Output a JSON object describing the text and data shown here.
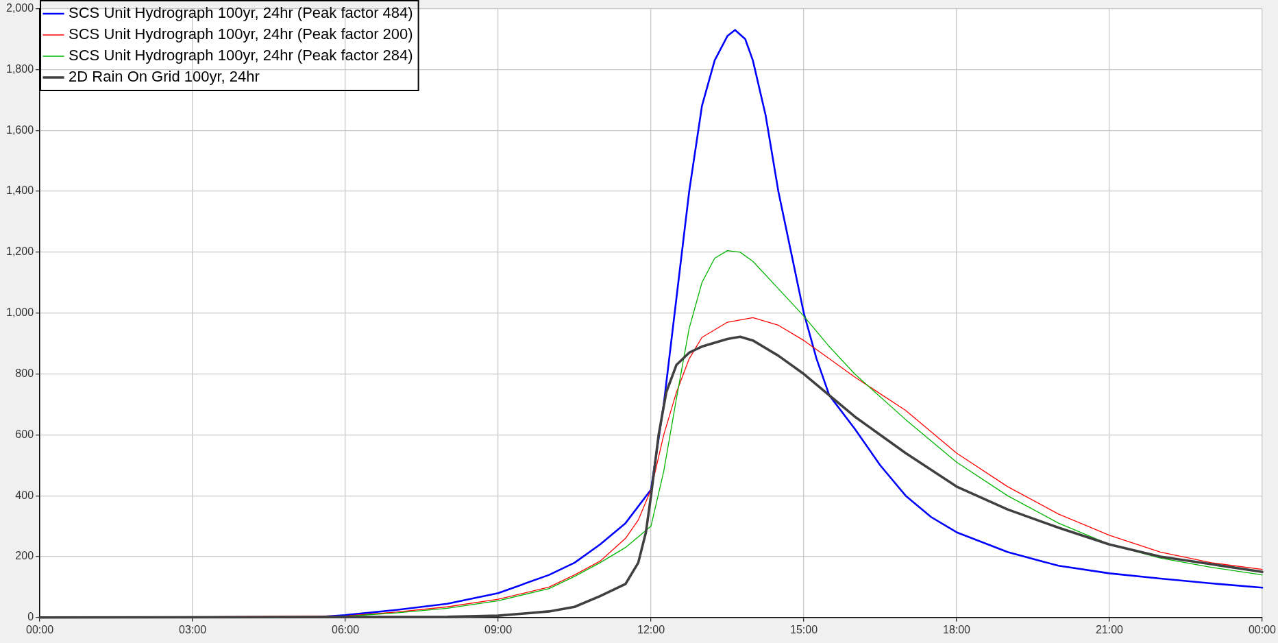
{
  "chart_data": {
    "type": "line",
    "xlim": [
      0,
      24
    ],
    "xticks": [
      {
        "value": 0,
        "label": "00:00"
      },
      {
        "value": 3,
        "label": "03:00"
      },
      {
        "value": 6,
        "label": "06:00"
      },
      {
        "value": 9,
        "label": "09:00"
      },
      {
        "value": 12,
        "label": "12:00"
      },
      {
        "value": 15,
        "label": "15:00"
      },
      {
        "value": 18,
        "label": "18:00"
      },
      {
        "value": 21,
        "label": "21:00"
      },
      {
        "value": 24,
        "label": "00:00"
      }
    ],
    "ylim": [
      0,
      2000
    ],
    "yticks": [
      0,
      200,
      400,
      600,
      800,
      {
        "value": 1000,
        "label": "1,000"
      },
      {
        "value": 1200,
        "label": "1,200"
      },
      {
        "value": 1400,
        "label": "1,400"
      },
      {
        "value": 1600,
        "label": "1,600"
      },
      {
        "value": 1800,
        "label": "1,800"
      },
      {
        "value": 2000,
        "label": "2,000"
      }
    ],
    "grid": true,
    "legend": "top left",
    "series": [
      {
        "name": "SCS Unit Hydrograph 100yr, 24hr (Peak factor 484)",
        "color": "#0000ff",
        "x": [
          0,
          5,
          5.5,
          6,
          7,
          8,
          9,
          10,
          10.5,
          11,
          11.5,
          12,
          12.25,
          12.5,
          12.75,
          13,
          13.25,
          13.5,
          13.65,
          13.85,
          14,
          14.25,
          14.5,
          14.75,
          15,
          15.25,
          15.5,
          16,
          16.5,
          17,
          17.5,
          18,
          19,
          20,
          21,
          22,
          23,
          24
        ],
        "values": [
          0,
          0,
          2,
          8,
          25,
          45,
          80,
          140,
          180,
          240,
          310,
          420,
          700,
          1050,
          1400,
          1680,
          1830,
          1910,
          1930,
          1900,
          1830,
          1650,
          1400,
          1200,
          1000,
          850,
          730,
          620,
          500,
          400,
          330,
          280,
          215,
          170,
          145,
          128,
          112,
          98
        ]
      },
      {
        "name": "SCS Unit Hydrograph 100yr, 24hr (Peak factor 200)",
        "color": "#ff0000",
        "x": [
          0,
          6,
          7,
          8,
          9,
          10,
          10.5,
          11,
          11.5,
          11.75,
          12,
          12.25,
          12.5,
          12.75,
          13,
          13.5,
          14,
          14.5,
          15,
          15.5,
          16,
          17,
          18,
          19,
          20,
          21,
          22,
          23,
          24
        ],
        "values": [
          0,
          5,
          18,
          35,
          60,
          100,
          140,
          185,
          260,
          320,
          420,
          600,
          740,
          850,
          920,
          970,
          985,
          960,
          910,
          850,
          790,
          680,
          540,
          430,
          340,
          270,
          215,
          180,
          158
        ]
      },
      {
        "name": "SCS Unit Hydrograph 100yr, 24hr (Peak factor 284)",
        "color": "#00b400",
        "x": [
          0,
          5.5,
          6,
          7,
          8,
          9,
          10,
          10.5,
          11,
          11.5,
          12,
          12.25,
          12.5,
          12.75,
          13,
          13.25,
          13.5,
          13.75,
          14,
          14.5,
          15,
          15.5,
          16,
          17,
          18,
          19,
          20,
          21,
          22,
          23,
          24
        ],
        "values": [
          0,
          1,
          4,
          15,
          30,
          55,
          95,
          135,
          180,
          230,
          300,
          480,
          720,
          950,
          1100,
          1180,
          1205,
          1200,
          1170,
          1080,
          990,
          890,
          800,
          650,
          510,
          400,
          310,
          240,
          195,
          165,
          140
        ]
      },
      {
        "name": "2D Rain On Grid 100yr, 24hr",
        "color": "#404040",
        "x": [
          0,
          8,
          9,
          10,
          10.5,
          11,
          11.5,
          11.75,
          11.9,
          12,
          12.15,
          12.3,
          12.5,
          12.75,
          13,
          13.5,
          13.75,
          14,
          14.5,
          15,
          15.5,
          16,
          17,
          18,
          19,
          20,
          21,
          22,
          23,
          24
        ],
        "values": [
          0,
          2,
          6,
          20,
          35,
          70,
          110,
          180,
          280,
          400,
          600,
          740,
          830,
          870,
          890,
          915,
          922,
          910,
          860,
          800,
          730,
          660,
          540,
          430,
          355,
          295,
          240,
          200,
          175,
          150
        ]
      }
    ]
  }
}
